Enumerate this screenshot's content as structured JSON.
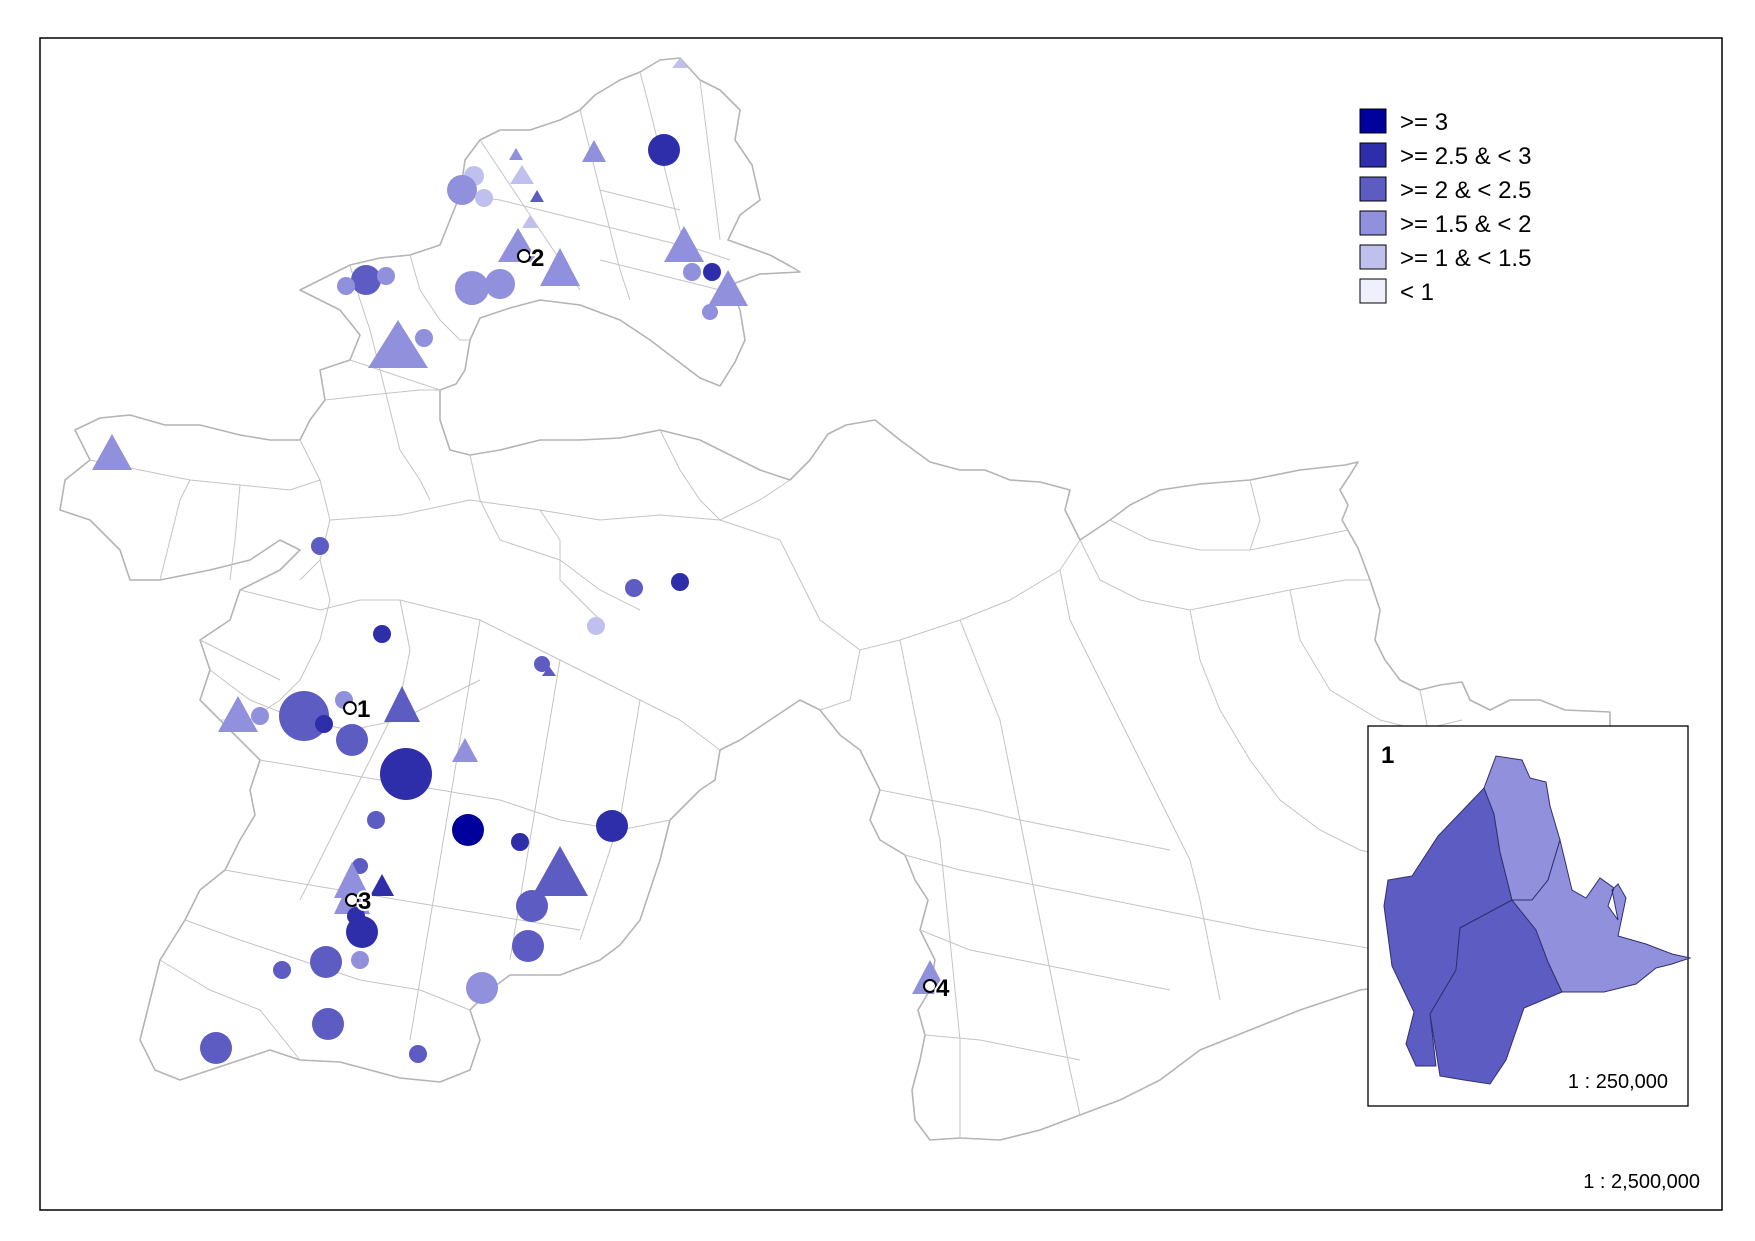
{
  "legend": {
    "items": [
      {
        "label": ">= 3",
        "color": "#00009c"
      },
      {
        "label": ">= 2.5 & < 3",
        "color": "#2e2eab"
      },
      {
        "label": ">= 2 & < 2.5",
        "color": "#5c5cc2"
      },
      {
        "label": ">= 1.5 & < 2",
        "color": "#9090dc"
      },
      {
        "label": ">= 1 & < 1.5",
        "color": "#c0c0ee"
      },
      {
        "label": "< 1",
        "color": "#f0f0fc"
      }
    ]
  },
  "map": {
    "scale": "1 : 2,500,000",
    "place_labels": [
      "1",
      "2",
      "3",
      "4"
    ]
  },
  "inset": {
    "label": "1",
    "scale": "1 : 250,000"
  }
}
